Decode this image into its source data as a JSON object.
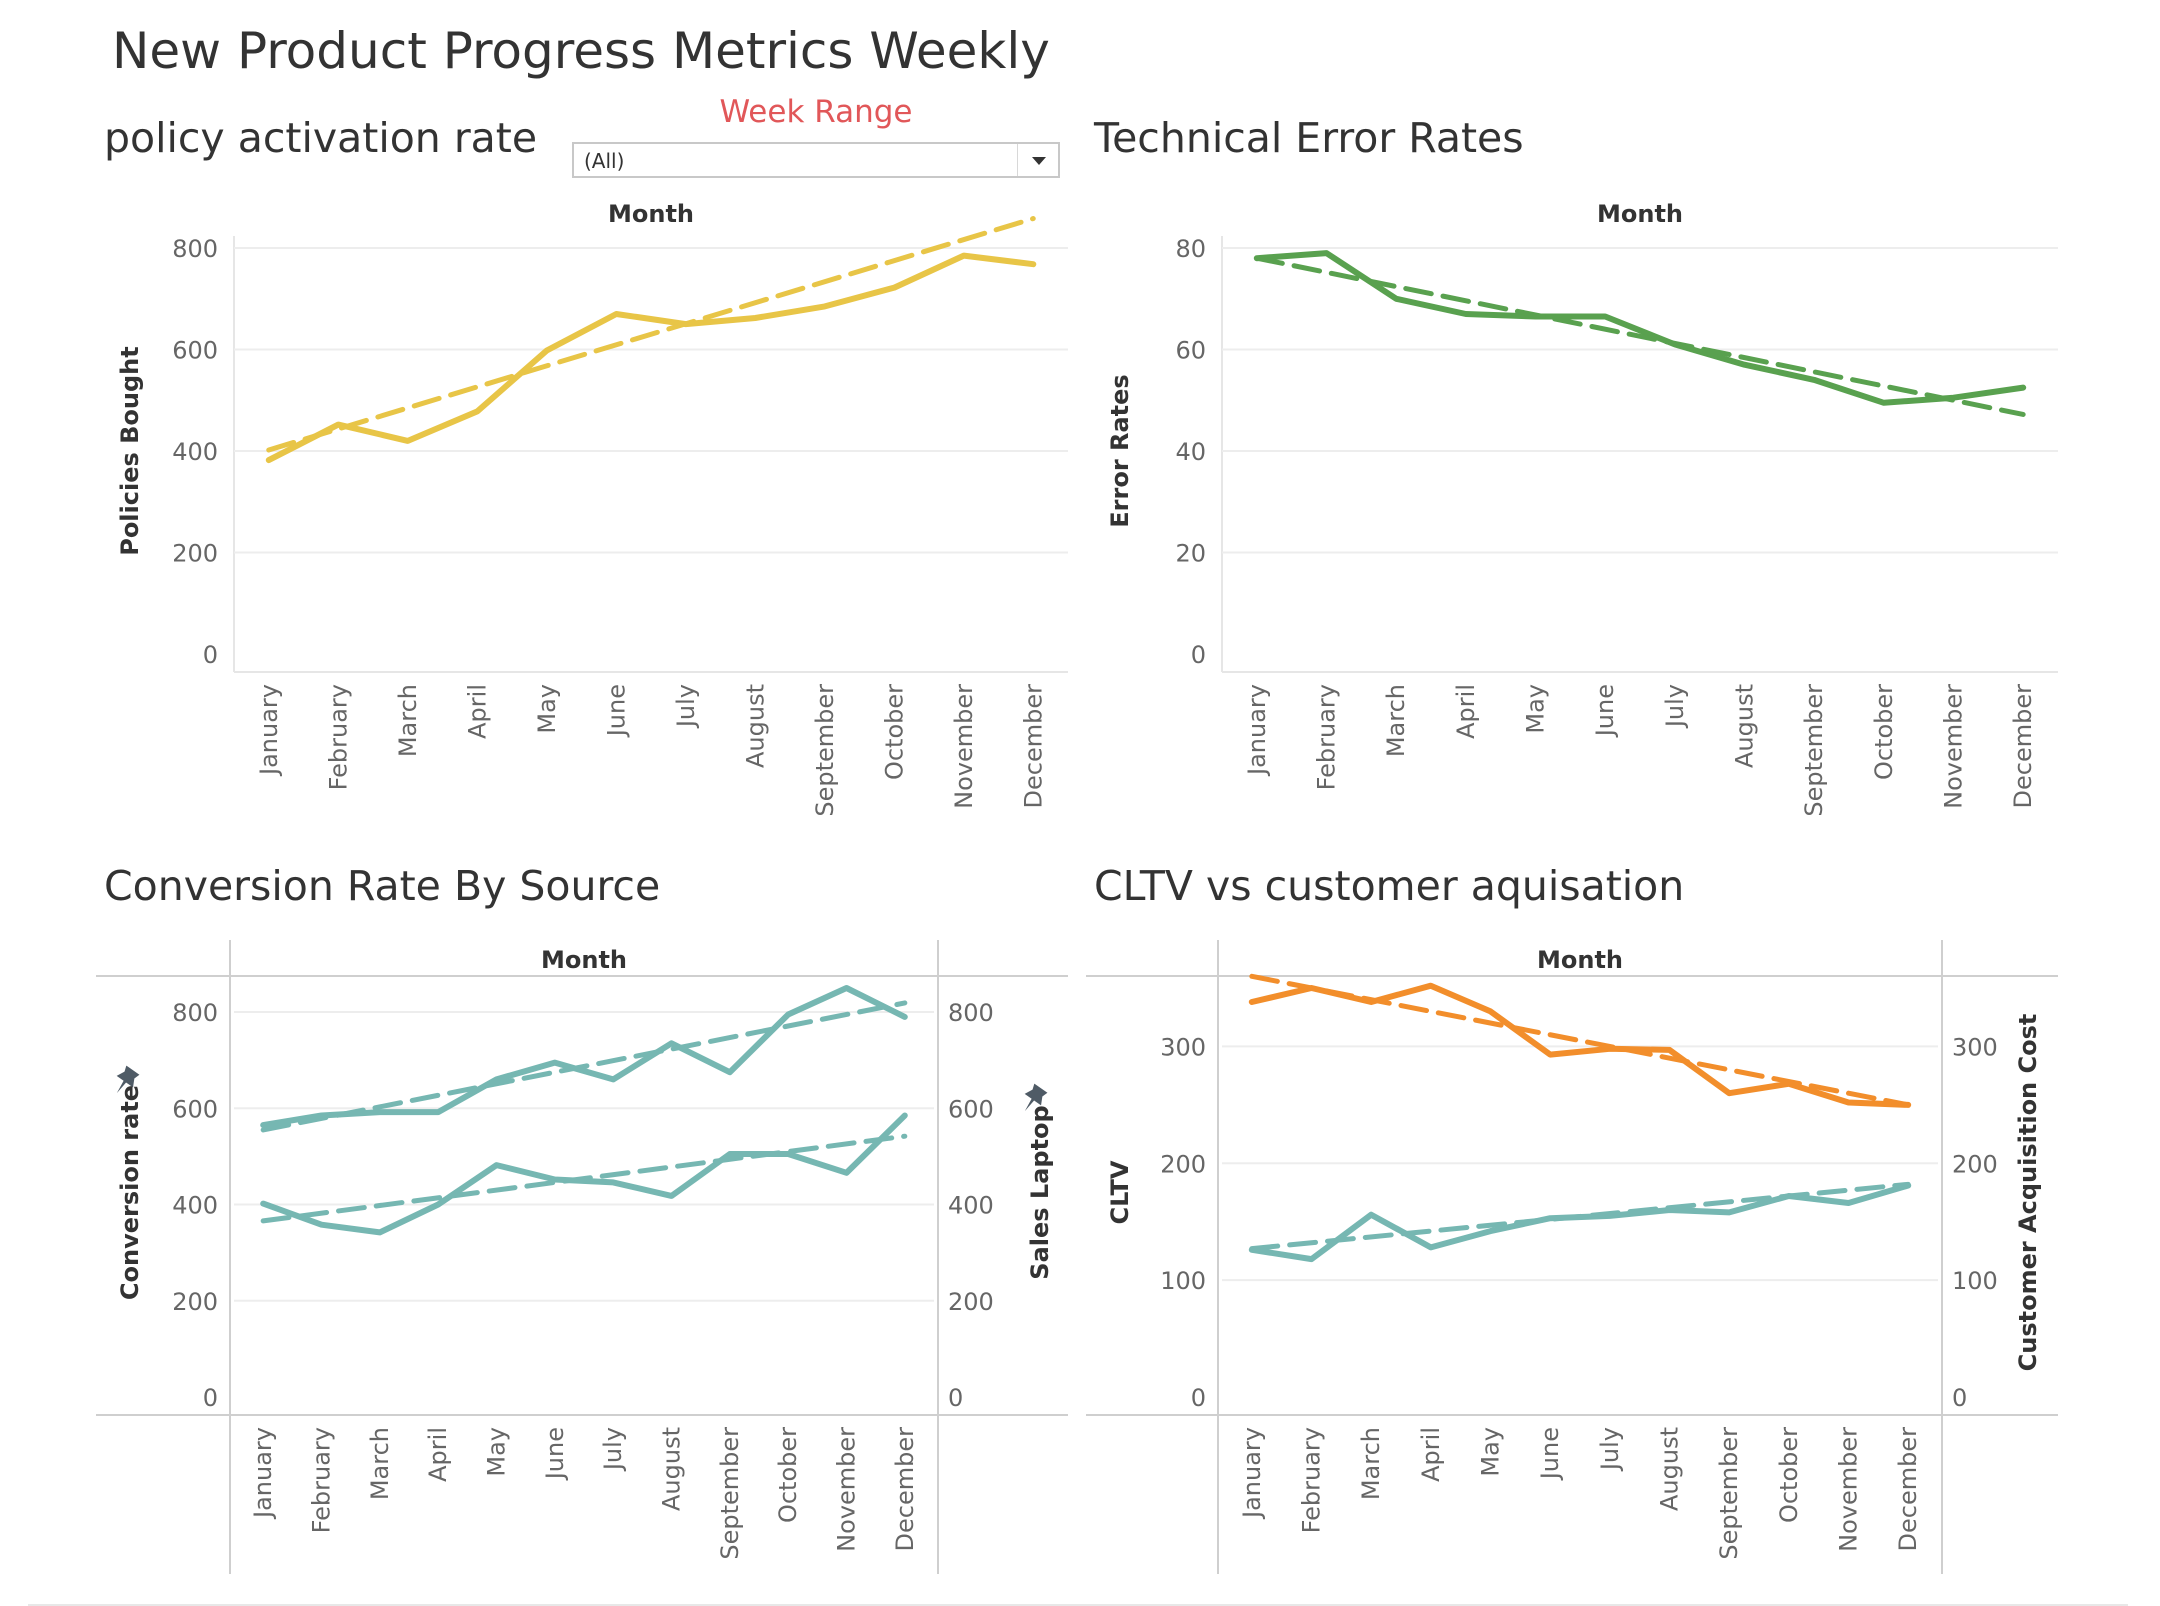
{
  "page": {
    "title": "New Product Progress Metrics Weekly"
  },
  "filter": {
    "label": "Week Range",
    "value": "(All)"
  },
  "chart_data": [
    {
      "id": "activation",
      "type": "line",
      "title": "policy activation rate",
      "header": "Month",
      "ylabel": "Policies Bought",
      "ylim": [
        0,
        800
      ],
      "yticks": [
        "0",
        "200",
        "400",
        "600",
        "800"
      ],
      "categories": [
        "January",
        "February",
        "March",
        "April",
        "May",
        "June",
        "July",
        "August",
        "September",
        "October",
        "November",
        "December"
      ],
      "series": [
        {
          "values": [
            382,
            452,
            420,
            478,
            598,
            670,
            650,
            662,
            685,
            722,
            785,
            768
          ],
          "color": "#e8c547",
          "trend": [
            402,
            443,
            485,
            526,
            568,
            609,
            651,
            692,
            734,
            775,
            817,
            858
          ]
        }
      ]
    },
    {
      "id": "errors",
      "type": "line",
      "title": "Technical Error Rates",
      "header": "Month",
      "ylabel": "Error Rates",
      "ylim": [
        0,
        80
      ],
      "yticks": [
        "0",
        "20",
        "40",
        "60",
        "80"
      ],
      "categories": [
        "January",
        "February",
        "March",
        "April",
        "May",
        "June",
        "July",
        "August",
        "September",
        "October",
        "November",
        "December"
      ],
      "series": [
        {
          "values": [
            78,
            79,
            70,
            67,
            66.5,
            66.5,
            61,
            57,
            54,
            49.5,
            50.5,
            52.5
          ],
          "color": "#59a14f",
          "trend": [
            78,
            75.2,
            72.4,
            69.6,
            66.8,
            64,
            61.2,
            58.4,
            55.6,
            52.8,
            50,
            47.2
          ]
        }
      ]
    },
    {
      "id": "conversion",
      "type": "line",
      "title": "Conversion Rate By Source",
      "header": "Month",
      "ylabel": "Conversion rate",
      "y2label": "Sales Laptop",
      "ylim": [
        0,
        850
      ],
      "yticks": [
        "0",
        "200",
        "400",
        "600",
        "800"
      ],
      "categories": [
        "January",
        "February",
        "March",
        "April",
        "May",
        "June",
        "July",
        "August",
        "September",
        "October",
        "November",
        "December"
      ],
      "series": [
        {
          "values": [
            565,
            585,
            592,
            592,
            660,
            695,
            660,
            735,
            675,
            795,
            850,
            790
          ],
          "color": "#76b7b2",
          "trend": [
            555,
            579,
            603,
            627,
            651,
            675,
            699,
            723,
            747,
            771,
            795,
            819
          ]
        },
        {
          "values": [
            402,
            358,
            342,
            400,
            482,
            452,
            446,
            418,
            505,
            505,
            466,
            585
          ],
          "color": "#76b7b2",
          "trend": [
            366,
            382,
            398,
            414,
            430,
            446,
            462,
            478,
            494,
            510,
            526,
            542
          ]
        }
      ]
    },
    {
      "id": "cltv",
      "type": "line",
      "title": "CLTV vs customer aquisation",
      "header": "Month",
      "ylabel": "CLTV",
      "y2label": "Customer Acquisition Cost",
      "ylim": [
        0,
        350
      ],
      "yticks": [
        "0",
        "100",
        "200",
        "300"
      ],
      "categories": [
        "January",
        "February",
        "March",
        "April",
        "May",
        "June",
        "July",
        "August",
        "September",
        "October",
        "November",
        "December"
      ],
      "series": [
        {
          "values": [
            338,
            350,
            338,
            352,
            330,
            293,
            298,
            297,
            260,
            268,
            252,
            250
          ],
          "color": "#f28e2b",
          "trend": [
            360,
            350,
            340,
            330,
            320,
            310,
            300,
            290,
            280,
            270,
            260,
            250
          ]
        },
        {
          "values": [
            126,
            118,
            156,
            128,
            142,
            153,
            155,
            160,
            158,
            172,
            166,
            181
          ],
          "color": "#76b7b2",
          "trend": [
            127,
            132,
            137,
            142,
            147,
            152,
            157,
            162,
            167,
            172,
            177,
            182
          ]
        }
      ]
    }
  ]
}
